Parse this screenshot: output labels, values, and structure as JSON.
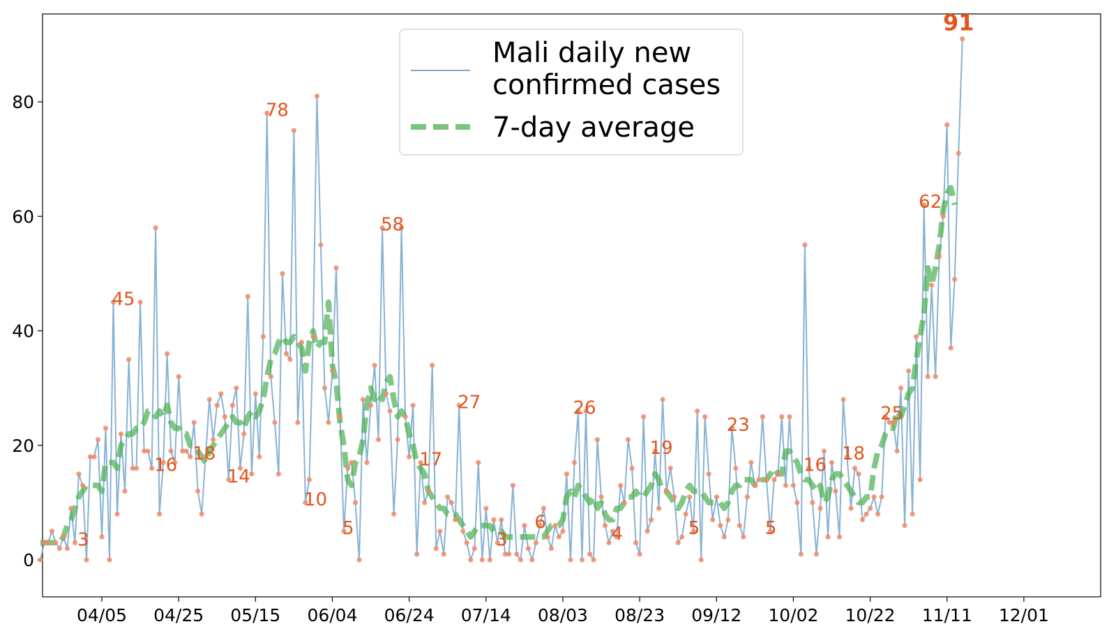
{
  "chart_data": {
    "type": "line",
    "start_date": "2020-03-25",
    "x_tick_labels": [
      "04/05",
      "04/25",
      "05/15",
      "06/04",
      "06/24",
      "07/14",
      "08/03",
      "08/23",
      "09/12",
      "10/02",
      "10/22",
      "11/11",
      "12/01"
    ],
    "y_tick_labels": [
      "0",
      "20",
      "40",
      "60",
      "80"
    ],
    "xlim": [
      "2020-03-20",
      "2020-12-01"
    ],
    "ylim": [
      -6,
      95
    ],
    "grid": false,
    "legend_position": "top-center",
    "series": [
      {
        "name": "Mali daily new confirmed cases",
        "style": "solid",
        "color": "#7aaacf",
        "values": [
          0,
          3,
          3,
          5,
          3,
          2,
          4,
          2,
          9,
          3,
          15,
          13,
          0,
          18,
          18,
          21,
          4,
          23,
          0,
          45,
          8,
          22,
          12,
          35,
          16,
          16,
          45,
          19,
          19,
          16,
          58,
          8,
          17,
          36,
          19,
          17,
          32,
          19,
          19,
          18,
          24,
          12,
          8,
          18,
          28,
          21,
          27,
          29,
          25,
          14,
          27,
          30,
          16,
          22,
          46,
          15,
          29,
          18,
          39,
          78,
          32,
          24,
          15,
          50,
          36,
          35,
          75,
          24,
          38,
          10,
          14,
          39,
          81,
          55,
          30,
          24,
          33,
          51,
          25,
          5,
          16,
          17,
          10,
          0,
          28,
          17,
          27,
          34,
          21,
          58,
          29,
          26,
          8,
          21,
          58,
          25,
          18,
          27,
          1,
          17,
          10,
          12,
          34,
          2,
          5,
          1,
          11,
          10,
          7,
          27,
          5,
          3,
          0,
          2,
          17,
          0,
          9,
          0,
          7,
          3,
          7,
          1,
          1,
          13,
          1,
          0,
          6,
          2,
          0,
          3,
          6,
          9,
          4,
          2,
          6,
          4,
          5,
          15,
          0,
          17,
          26,
          0,
          26,
          1,
          0,
          21,
          11,
          6,
          3,
          5,
          4,
          13,
          10,
          21,
          16,
          3,
          1,
          25,
          5,
          7,
          19,
          9,
          28,
          12,
          16,
          11,
          3,
          4,
          8,
          11,
          5,
          26,
          0,
          25,
          15,
          7,
          11,
          6,
          4,
          7,
          23,
          16,
          6,
          4,
          11,
          17,
          13,
          14,
          25,
          14,
          5,
          14,
          15,
          25,
          13,
          25,
          13,
          10,
          1,
          55,
          16,
          10,
          1,
          9,
          19,
          4,
          17,
          12,
          4,
          28,
          18,
          9,
          16,
          15,
          7,
          8,
          9,
          11,
          8,
          11,
          25,
          24,
          24,
          19,
          30,
          6,
          33,
          8,
          39,
          14,
          62,
          32,
          48,
          32,
          53,
          60,
          76,
          37,
          49,
          71,
          91
        ]
      },
      {
        "name": "7-day average",
        "style": "dashed",
        "color": "#4caf50",
        "values": [
          3,
          3,
          3,
          3,
          3,
          3,
          4,
          6,
          7,
          9,
          11,
          12,
          13,
          13,
          13,
          13,
          12,
          17,
          17,
          17,
          16,
          20,
          21,
          22,
          22,
          23,
          23,
          24,
          26,
          26,
          25,
          26,
          25,
          27,
          24,
          23,
          23,
          22,
          22,
          20,
          20,
          19,
          18,
          17,
          19,
          20,
          21,
          22,
          23,
          24,
          25,
          24,
          24,
          23,
          25,
          26,
          25,
          26,
          28,
          32,
          35,
          36,
          38,
          39,
          38,
          38,
          39,
          38,
          37,
          33,
          38,
          40,
          37,
          38,
          38,
          45,
          34,
          31,
          24,
          20,
          14,
          13,
          17,
          18,
          21,
          27,
          30,
          28,
          29,
          28,
          31,
          32,
          28,
          25,
          26,
          25,
          22,
          20,
          17,
          16,
          15,
          12,
          11,
          10,
          9,
          9,
          8,
          8,
          8,
          7,
          6,
          5,
          4,
          5,
          6,
          6,
          6,
          6,
          5,
          5,
          5,
          4,
          4,
          4,
          4,
          4,
          4,
          4,
          4,
          4,
          4,
          4,
          5,
          6,
          6,
          6,
          7,
          11,
          12,
          11,
          13,
          12,
          11,
          10,
          11,
          9,
          10,
          8,
          7,
          7,
          9,
          9,
          10,
          11,
          11,
          12,
          11,
          11,
          12,
          13,
          15,
          14,
          12,
          12,
          11,
          10,
          9,
          10,
          12,
          13,
          12,
          12,
          12,
          11,
          10,
          10,
          10,
          10,
          9,
          10,
          12,
          13,
          13,
          14,
          14,
          14,
          13,
          14,
          14,
          14,
          15,
          16,
          15,
          15,
          19,
          19,
          18,
          17,
          15,
          14,
          14,
          13,
          12,
          13,
          10,
          11,
          14,
          15,
          15,
          14,
          13,
          12,
          11,
          10,
          10,
          11,
          11,
          16,
          19,
          20,
          22,
          23,
          23,
          26,
          25,
          27,
          29,
          30,
          35,
          39,
          43,
          51,
          48,
          51,
          55,
          61,
          64,
          65,
          62
        ]
      }
    ],
    "annotations": [
      {
        "day": 10,
        "value": 3,
        "label": "3"
      },
      {
        "day": 19,
        "value": 45,
        "label": "45"
      },
      {
        "day": 30,
        "value": 16,
        "label": "16"
      },
      {
        "day": 40,
        "value": 18,
        "label": "18"
      },
      {
        "day": 49,
        "value": 14,
        "label": "14"
      },
      {
        "day": 59,
        "value": 78,
        "label": "78"
      },
      {
        "day": 69,
        "value": 10,
        "label": "10"
      },
      {
        "day": 79,
        "value": 5,
        "label": "5"
      },
      {
        "day": 89,
        "value": 58,
        "label": "58"
      },
      {
        "day": 99,
        "value": 17,
        "label": "17"
      },
      {
        "day": 109,
        "value": 27,
        "label": "27"
      },
      {
        "day": 119,
        "value": 3,
        "label": "3"
      },
      {
        "day": 129,
        "value": 6,
        "label": "6"
      },
      {
        "day": 139,
        "value": 26,
        "label": "26"
      },
      {
        "day": 149,
        "value": 4,
        "label": "4"
      },
      {
        "day": 159,
        "value": 19,
        "label": "19"
      },
      {
        "day": 169,
        "value": 5,
        "label": "5"
      },
      {
        "day": 179,
        "value": 23,
        "label": "23"
      },
      {
        "day": 189,
        "value": 5,
        "label": "5"
      },
      {
        "day": 199,
        "value": 16,
        "label": "16"
      },
      {
        "day": 209,
        "value": 18,
        "label": "18"
      },
      {
        "day": 219,
        "value": 25,
        "label": "25"
      },
      {
        "day": 229,
        "value": 62,
        "label": "62"
      },
      {
        "day": 239,
        "value": 91,
        "label": "91",
        "bold": true
      }
    ],
    "legend": [
      {
        "label_lines": [
          "Mali daily new",
          "confirmed cases"
        ],
        "style": "solid",
        "color": "#7aaacf"
      },
      {
        "label_lines": [
          "7-day average"
        ],
        "style": "dashed",
        "color": "#4caf50"
      }
    ],
    "colors": {
      "daily_line": "#7aaacf",
      "daily_marker": "#f08a68",
      "average_line": "#4caf50",
      "annotation": "#e2541b",
      "axes": "#000000"
    }
  }
}
